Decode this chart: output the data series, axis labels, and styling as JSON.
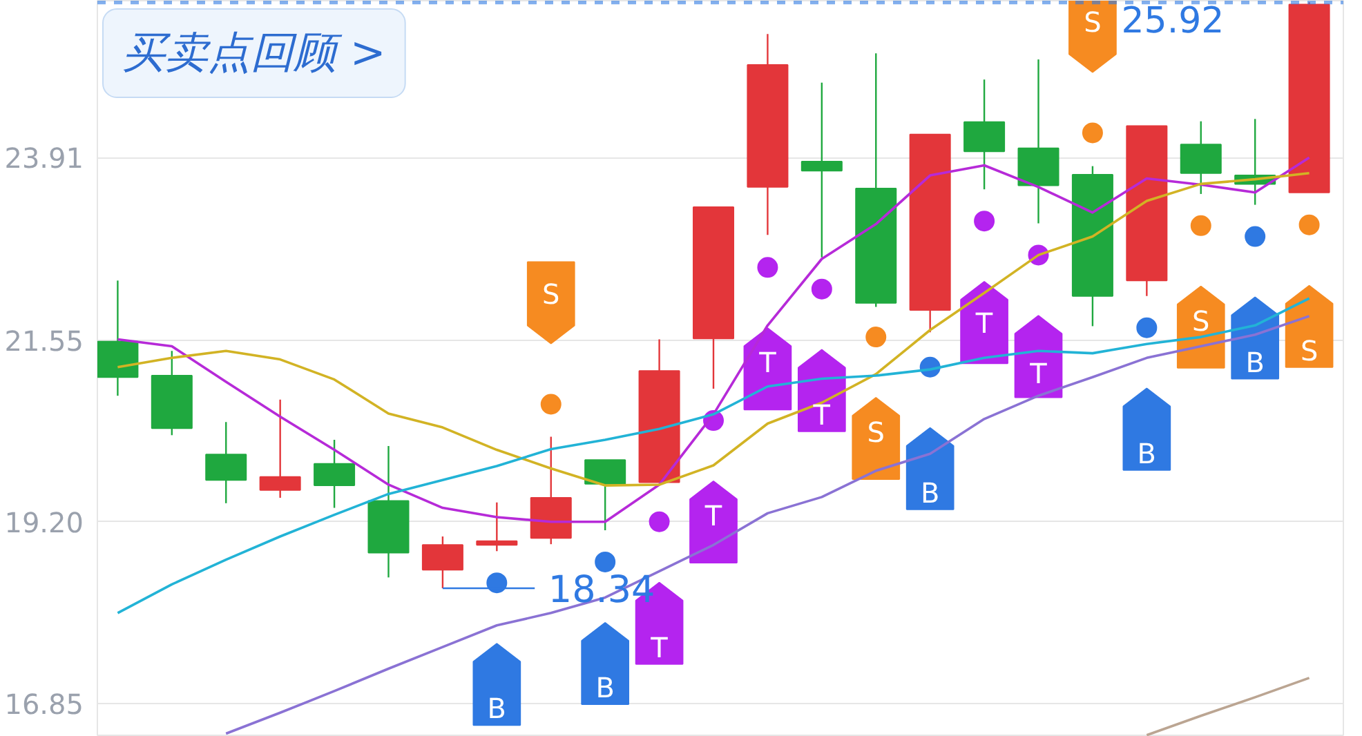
{
  "chart_data": {
    "type": "candlestick",
    "categories": [
      null,
      null,
      null,
      null,
      null,
      null,
      null,
      null,
      null,
      null,
      null,
      null,
      null,
      null,
      null,
      null,
      null,
      null,
      null,
      null,
      null,
      null,
      null
    ],
    "ohlc": [
      [
        21.53,
        22.32,
        20.83,
        21.07
      ],
      [
        21.09,
        21.41,
        20.32,
        20.41
      ],
      [
        20.07,
        20.49,
        19.44,
        19.74
      ],
      [
        19.61,
        20.78,
        19.51,
        19.78
      ],
      [
        19.95,
        20.26,
        19.38,
        19.67
      ],
      [
        19.47,
        20.18,
        18.48,
        18.8
      ],
      [
        18.58,
        19.01,
        18.34,
        18.9
      ],
      [
        18.9,
        19.45,
        18.82,
        18.95
      ],
      [
        18.99,
        20.3,
        18.91,
        19.51
      ],
      [
        20.0,
        20.0,
        19.09,
        19.69
      ],
      [
        19.71,
        21.56,
        19.71,
        21.15
      ],
      [
        21.57,
        23.27,
        20.92,
        23.27
      ],
      [
        23.53,
        25.51,
        22.91,
        25.11
      ],
      [
        23.86,
        24.88,
        22.62,
        23.74
      ],
      [
        23.51,
        25.26,
        21.98,
        22.03
      ],
      [
        21.94,
        24.21,
        21.65,
        24.21
      ],
      [
        24.37,
        24.92,
        23.5,
        23.99
      ],
      [
        24.03,
        25.18,
        23.06,
        23.55
      ],
      [
        23.69,
        23.8,
        21.73,
        22.12
      ],
      [
        22.32,
        24.32,
        22.12,
        24.32
      ],
      [
        24.08,
        24.38,
        23.44,
        23.71
      ],
      [
        23.68,
        24.41,
        23.3,
        23.57
      ],
      [
        23.46,
        25.92,
        23.46,
        25.89
      ]
    ],
    "colors": [
      "#1fa83f",
      "#1fa83f",
      "#1fa83f",
      "#e3363a",
      "#1fa83f",
      "#1fa83f",
      "#e3363a",
      "#e3363a",
      "#e3363a",
      "#1fa83f",
      "#e3363a",
      "#e3363a",
      "#e3363a",
      "#1fa83f",
      "#1fa83f",
      "#e3363a",
      "#1fa83f",
      "#1fa83f",
      "#1fa83f",
      "#e3363a",
      "#1fa83f",
      "#1fa83f",
      "#e3363a"
    ],
    "series": [
      {
        "type": "line",
        "color": "#b62ad8",
        "values": [
          21.56,
          21.47,
          21.01,
          20.56,
          20.13,
          19.68,
          19.38,
          19.26,
          19.2,
          19.2,
          19.68,
          20.59,
          21.74,
          22.6,
          23.05,
          23.68,
          23.81,
          23.53,
          23.2,
          23.64,
          23.56,
          23.46,
          23.91
        ]
      },
      {
        "type": "line",
        "color": "#d2b324",
        "values": [
          21.2,
          21.32,
          21.41,
          21.3,
          21.04,
          20.6,
          20.42,
          20.13,
          19.89,
          19.67,
          19.68,
          19.93,
          20.47,
          20.74,
          21.11,
          21.68,
          22.16,
          22.65,
          22.89,
          23.35,
          23.57,
          23.63,
          23.71
        ]
      },
      {
        "type": "line",
        "color": "#22b3d6",
        "values": [
          18.02,
          18.39,
          18.71,
          19.01,
          19.29,
          19.56,
          19.74,
          19.92,
          20.14,
          20.26,
          20.4,
          20.59,
          20.95,
          21.05,
          21.09,
          21.17,
          21.32,
          21.41,
          21.38,
          21.5,
          21.59,
          21.74,
          22.09
        ]
      },
      {
        "type": "line",
        "color": "#8a72d4",
        "values": [
          null,
          null,
          16.46,
          16.73,
          17.01,
          17.3,
          17.58,
          17.86,
          18.02,
          18.22,
          18.56,
          18.9,
          19.31,
          19.52,
          19.86,
          20.08,
          20.53,
          20.83,
          21.07,
          21.32,
          21.47,
          21.62,
          21.86
        ]
      },
      {
        "type": "line",
        "color": "#bba592",
        "values": [
          null,
          null,
          null,
          null,
          null,
          null,
          null,
          null,
          null,
          null,
          null,
          null,
          null,
          null,
          null,
          null,
          null,
          null,
          null,
          16.44,
          16.69,
          16.93,
          17.18
        ]
      },
      {
        "name": "B",
        "type": "scatter",
        "marker": "circle",
        "color": "#2f79e2",
        "values": [
          null,
          null,
          null,
          null,
          null,
          null,
          null,
          18.41,
          null,
          18.68,
          null,
          null,
          null,
          null,
          null,
          21.2,
          null,
          null,
          null,
          21.71,
          null,
          22.89,
          null
        ]
      },
      {
        "name": "S",
        "type": "scatter",
        "marker": "circle",
        "color": "#f68b21",
        "values": [
          null,
          null,
          null,
          null,
          null,
          null,
          null,
          null,
          20.72,
          null,
          null,
          null,
          null,
          null,
          21.59,
          null,
          null,
          null,
          24.23,
          null,
          23.03,
          null,
          23.04
        ]
      },
      {
        "name": "T",
        "type": "scatter",
        "marker": "circle",
        "color": "#b424ef",
        "values": [
          null,
          null,
          null,
          null,
          null,
          null,
          null,
          null,
          null,
          null,
          19.2,
          20.51,
          22.49,
          22.21,
          null,
          null,
          23.09,
          22.65,
          null,
          null,
          null,
          null,
          null
        ]
      }
    ],
    "ylim": [
      16.42,
      25.94
    ],
    "yticks": [
      16.85,
      {
        "value": 19.2,
        "label": "19.20"
      },
      21.55,
      23.91
    ],
    "grid": "y",
    "tick_labels": "y",
    "line_style": "solid",
    "ref_lines": [
      {
        "axis": "y",
        "value": 25.92,
        "label": "25.92",
        "color": "#2f79e2",
        "line_style": "dashed"
      }
    ],
    "annotations": [
      "买卖点回顾 >",
      "18.34"
    ]
  }
}
